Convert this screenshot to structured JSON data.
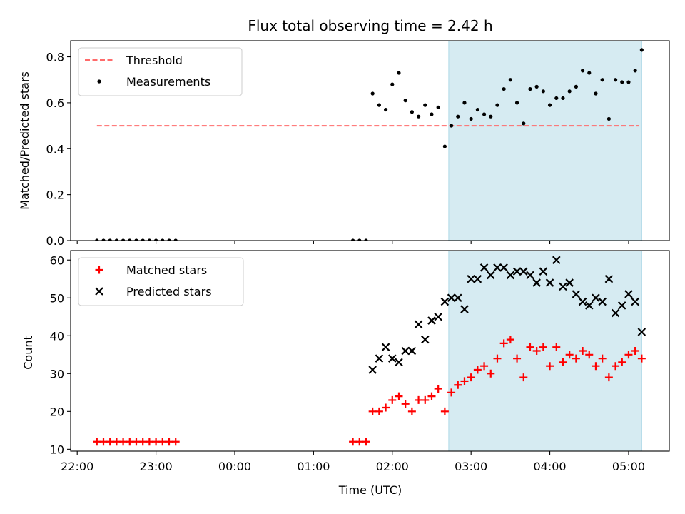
{
  "chart_data": [
    {
      "type": "scatter",
      "title": "Flux total observing time = 2.42 h",
      "xlabel": "",
      "ylabel": "Matched/Predicted stars",
      "ylim": [
        0,
        0.87
      ],
      "yticks": [
        0.0,
        0.2,
        0.4,
        0.6,
        0.8
      ],
      "yticklabels": [
        "0.0",
        "0.2",
        "0.4",
        "0.6",
        "0.8"
      ],
      "xlim": [
        "21:55",
        "05:31"
      ],
      "highlight_span": [
        "02:43",
        "05:10"
      ],
      "highlight_color": "#add8e6",
      "legend_position": "top-left",
      "threshold": {
        "name": "Threshold",
        "value": 0.5,
        "x_start": "22:15",
        "x_end": "05:08",
        "color": "#ff6b6b"
      },
      "series": [
        {
          "name": "Measurements",
          "color": "#000000",
          "marker": "dot",
          "points": [
            [
              "22:15",
              0.0
            ],
            [
              "22:20",
              0.0
            ],
            [
              "22:25",
              0.0
            ],
            [
              "22:30",
              0.0
            ],
            [
              "22:35",
              0.0
            ],
            [
              "22:40",
              0.0
            ],
            [
              "22:45",
              0.0
            ],
            [
              "22:50",
              0.0
            ],
            [
              "22:55",
              0.0
            ],
            [
              "23:00",
              0.0
            ],
            [
              "23:05",
              0.0
            ],
            [
              "23:10",
              0.0
            ],
            [
              "23:15",
              0.0
            ],
            [
              "01:30",
              0.0
            ],
            [
              "01:35",
              0.0
            ],
            [
              "01:40",
              0.0
            ],
            [
              "01:45",
              0.64
            ],
            [
              "01:50",
              0.59
            ],
            [
              "01:55",
              0.57
            ],
            [
              "02:00",
              0.68
            ],
            [
              "02:05",
              0.73
            ],
            [
              "02:10",
              0.61
            ],
            [
              "02:15",
              0.56
            ],
            [
              "02:20",
              0.54
            ],
            [
              "02:25",
              0.59
            ],
            [
              "02:30",
              0.55
            ],
            [
              "02:35",
              0.58
            ],
            [
              "02:40",
              0.41
            ],
            [
              "02:45",
              0.5
            ],
            [
              "02:50",
              0.54
            ],
            [
              "02:55",
              0.6
            ],
            [
              "03:00",
              0.53
            ],
            [
              "03:05",
              0.57
            ],
            [
              "03:10",
              0.55
            ],
            [
              "03:15",
              0.54
            ],
            [
              "03:20",
              0.59
            ],
            [
              "03:25",
              0.66
            ],
            [
              "03:30",
              0.7
            ],
            [
              "03:35",
              0.6
            ],
            [
              "03:40",
              0.51
            ],
            [
              "03:45",
              0.66
            ],
            [
              "03:50",
              0.67
            ],
            [
              "03:55",
              0.65
            ],
            [
              "04:00",
              0.59
            ],
            [
              "04:05",
              0.62
            ],
            [
              "04:10",
              0.62
            ],
            [
              "04:15",
              0.65
            ],
            [
              "04:20",
              0.67
            ],
            [
              "04:25",
              0.74
            ],
            [
              "04:30",
              0.73
            ],
            [
              "04:35",
              0.64
            ],
            [
              "04:40",
              0.7
            ],
            [
              "04:45",
              0.53
            ],
            [
              "04:50",
              0.7
            ],
            [
              "04:55",
              0.69
            ],
            [
              "05:00",
              0.69
            ],
            [
              "05:05",
              0.74
            ],
            [
              "05:10",
              0.83
            ]
          ]
        }
      ]
    },
    {
      "type": "scatter",
      "title": "",
      "xlabel": "Time (UTC)",
      "ylabel": "Count",
      "ylim": [
        9.5,
        62.5
      ],
      "yticks": [
        10,
        20,
        30,
        40,
        50,
        60
      ],
      "yticklabels": [
        "10",
        "20",
        "30",
        "40",
        "50",
        "60"
      ],
      "xlim": [
        "21:55",
        "05:31"
      ],
      "xticks": [
        "22:00",
        "23:00",
        "00:00",
        "01:00",
        "02:00",
        "03:00",
        "04:00",
        "05:00"
      ],
      "xticklabels": [
        "22:00",
        "23:00",
        "00:00",
        "01:00",
        "02:00",
        "03:00",
        "04:00",
        "05:00"
      ],
      "highlight_span": [
        "02:43",
        "05:10"
      ],
      "highlight_color": "#add8e6",
      "legend_position": "top-left",
      "series": [
        {
          "name": "Matched stars",
          "color": "#ff0000",
          "marker": "plus",
          "points": [
            [
              "22:15",
              12
            ],
            [
              "22:20",
              12
            ],
            [
              "22:25",
              12
            ],
            [
              "22:30",
              12
            ],
            [
              "22:35",
              12
            ],
            [
              "22:40",
              12
            ],
            [
              "22:45",
              12
            ],
            [
              "22:50",
              12
            ],
            [
              "22:55",
              12
            ],
            [
              "23:00",
              12
            ],
            [
              "23:05",
              12
            ],
            [
              "23:10",
              12
            ],
            [
              "23:15",
              12
            ],
            [
              "01:30",
              12
            ],
            [
              "01:35",
              12
            ],
            [
              "01:40",
              12
            ],
            [
              "01:45",
              20
            ],
            [
              "01:50",
              20
            ],
            [
              "01:55",
              21
            ],
            [
              "02:00",
              23
            ],
            [
              "02:05",
              24
            ],
            [
              "02:10",
              22
            ],
            [
              "02:15",
              20
            ],
            [
              "02:20",
              23
            ],
            [
              "02:25",
              23
            ],
            [
              "02:30",
              24
            ],
            [
              "02:35",
              26
            ],
            [
              "02:40",
              20
            ],
            [
              "02:45",
              25
            ],
            [
              "02:50",
              27
            ],
            [
              "02:55",
              28
            ],
            [
              "03:00",
              29
            ],
            [
              "03:05",
              31
            ],
            [
              "03:10",
              32
            ],
            [
              "03:15",
              30
            ],
            [
              "03:20",
              34
            ],
            [
              "03:25",
              38
            ],
            [
              "03:30",
              39
            ],
            [
              "03:35",
              34
            ],
            [
              "03:40",
              29
            ],
            [
              "03:45",
              37
            ],
            [
              "03:50",
              36
            ],
            [
              "03:55",
              37
            ],
            [
              "04:00",
              32
            ],
            [
              "04:05",
              37
            ],
            [
              "04:10",
              33
            ],
            [
              "04:15",
              35
            ],
            [
              "04:20",
              34
            ],
            [
              "04:25",
              36
            ],
            [
              "04:30",
              35
            ],
            [
              "04:35",
              32
            ],
            [
              "04:40",
              34
            ],
            [
              "04:45",
              29
            ],
            [
              "04:50",
              32
            ],
            [
              "04:55",
              33
            ],
            [
              "05:00",
              35
            ],
            [
              "05:05",
              36
            ],
            [
              "05:10",
              34
            ]
          ]
        },
        {
          "name": "Predicted stars",
          "color": "#000000",
          "marker": "x",
          "points": [
            [
              "01:45",
              31
            ],
            [
              "01:50",
              34
            ],
            [
              "01:55",
              37
            ],
            [
              "02:00",
              34
            ],
            [
              "02:05",
              33
            ],
            [
              "02:10",
              36
            ],
            [
              "02:15",
              36
            ],
            [
              "02:20",
              43
            ],
            [
              "02:25",
              39
            ],
            [
              "02:30",
              44
            ],
            [
              "02:35",
              45
            ],
            [
              "02:40",
              49
            ],
            [
              "02:45",
              50
            ],
            [
              "02:50",
              50
            ],
            [
              "02:55",
              47
            ],
            [
              "03:00",
              55
            ],
            [
              "03:05",
              55
            ],
            [
              "03:10",
              58
            ],
            [
              "03:15",
              56
            ],
            [
              "03:20",
              58
            ],
            [
              "03:25",
              58
            ],
            [
              "03:30",
              56
            ],
            [
              "03:35",
              57
            ],
            [
              "03:40",
              57
            ],
            [
              "03:45",
              56
            ],
            [
              "03:50",
              54
            ],
            [
              "03:55",
              57
            ],
            [
              "04:00",
              54
            ],
            [
              "04:05",
              60
            ],
            [
              "04:10",
              53
            ],
            [
              "04:15",
              54
            ],
            [
              "04:20",
              51
            ],
            [
              "04:25",
              49
            ],
            [
              "04:30",
              48
            ],
            [
              "04:35",
              50
            ],
            [
              "04:40",
              49
            ],
            [
              "04:45",
              55
            ],
            [
              "04:50",
              46
            ],
            [
              "04:55",
              48
            ],
            [
              "05:00",
              51
            ],
            [
              "05:05",
              49
            ],
            [
              "05:10",
              41
            ]
          ]
        }
      ]
    }
  ]
}
